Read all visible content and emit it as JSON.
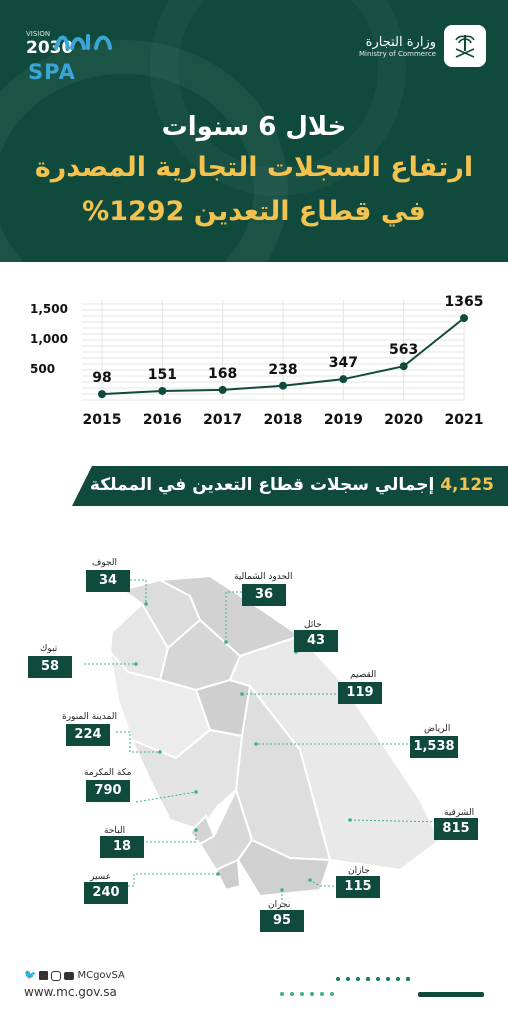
{
  "header": {
    "vision_label": "VISION",
    "vision_year": "2030",
    "spa": "SPA",
    "ministry_ar": "وزارة التجارة",
    "ministry_en": "Ministry of Commerce",
    "headline1": "خلال 6 سنوات",
    "headline2": "ارتفاع السجلات التجارية المصدرة",
    "headline3": "في قطاع التعدين 1292%"
  },
  "chart_data": {
    "type": "line",
    "x": [
      "2015",
      "2016",
      "2017",
      "2018",
      "2019",
      "2020",
      "2021"
    ],
    "values": [
      98,
      151,
      168,
      238,
      347,
      563,
      1365
    ],
    "yticks": [
      "1,500",
      "1,000",
      "500"
    ],
    "ylim": [
      0,
      1500
    ],
    "grid": true,
    "color": "#0f4a3c"
  },
  "banner": {
    "number": "4,125",
    "text": "إجمالي سجلات قطاع التعدين في المملكة"
  },
  "regions": [
    {
      "name": "الجوف",
      "value": "34"
    },
    {
      "name": "الحدود الشمالية",
      "value": "36"
    },
    {
      "name": "حائل",
      "value": "43"
    },
    {
      "name": "تبوك",
      "value": "58"
    },
    {
      "name": "القصيم",
      "value": "119"
    },
    {
      "name": "المدينة المنورة",
      "value": "224"
    },
    {
      "name": "الرياض",
      "value": "1,538"
    },
    {
      "name": "مكة المكرمة",
      "value": "790"
    },
    {
      "name": "الشرقية",
      "value": "815"
    },
    {
      "name": "الباحة",
      "value": "18"
    },
    {
      "name": "جازان",
      "value": "115"
    },
    {
      "name": "عسير",
      "value": "240"
    },
    {
      "name": "نجران",
      "value": "95"
    }
  ],
  "footer": {
    "handle": "MCgovSA",
    "site": "www.mc.gov.sa"
  },
  "colors": {
    "primary": "#0f4a3c",
    "accent": "#f3c24f",
    "map_fill": "#e6e6e6"
  }
}
